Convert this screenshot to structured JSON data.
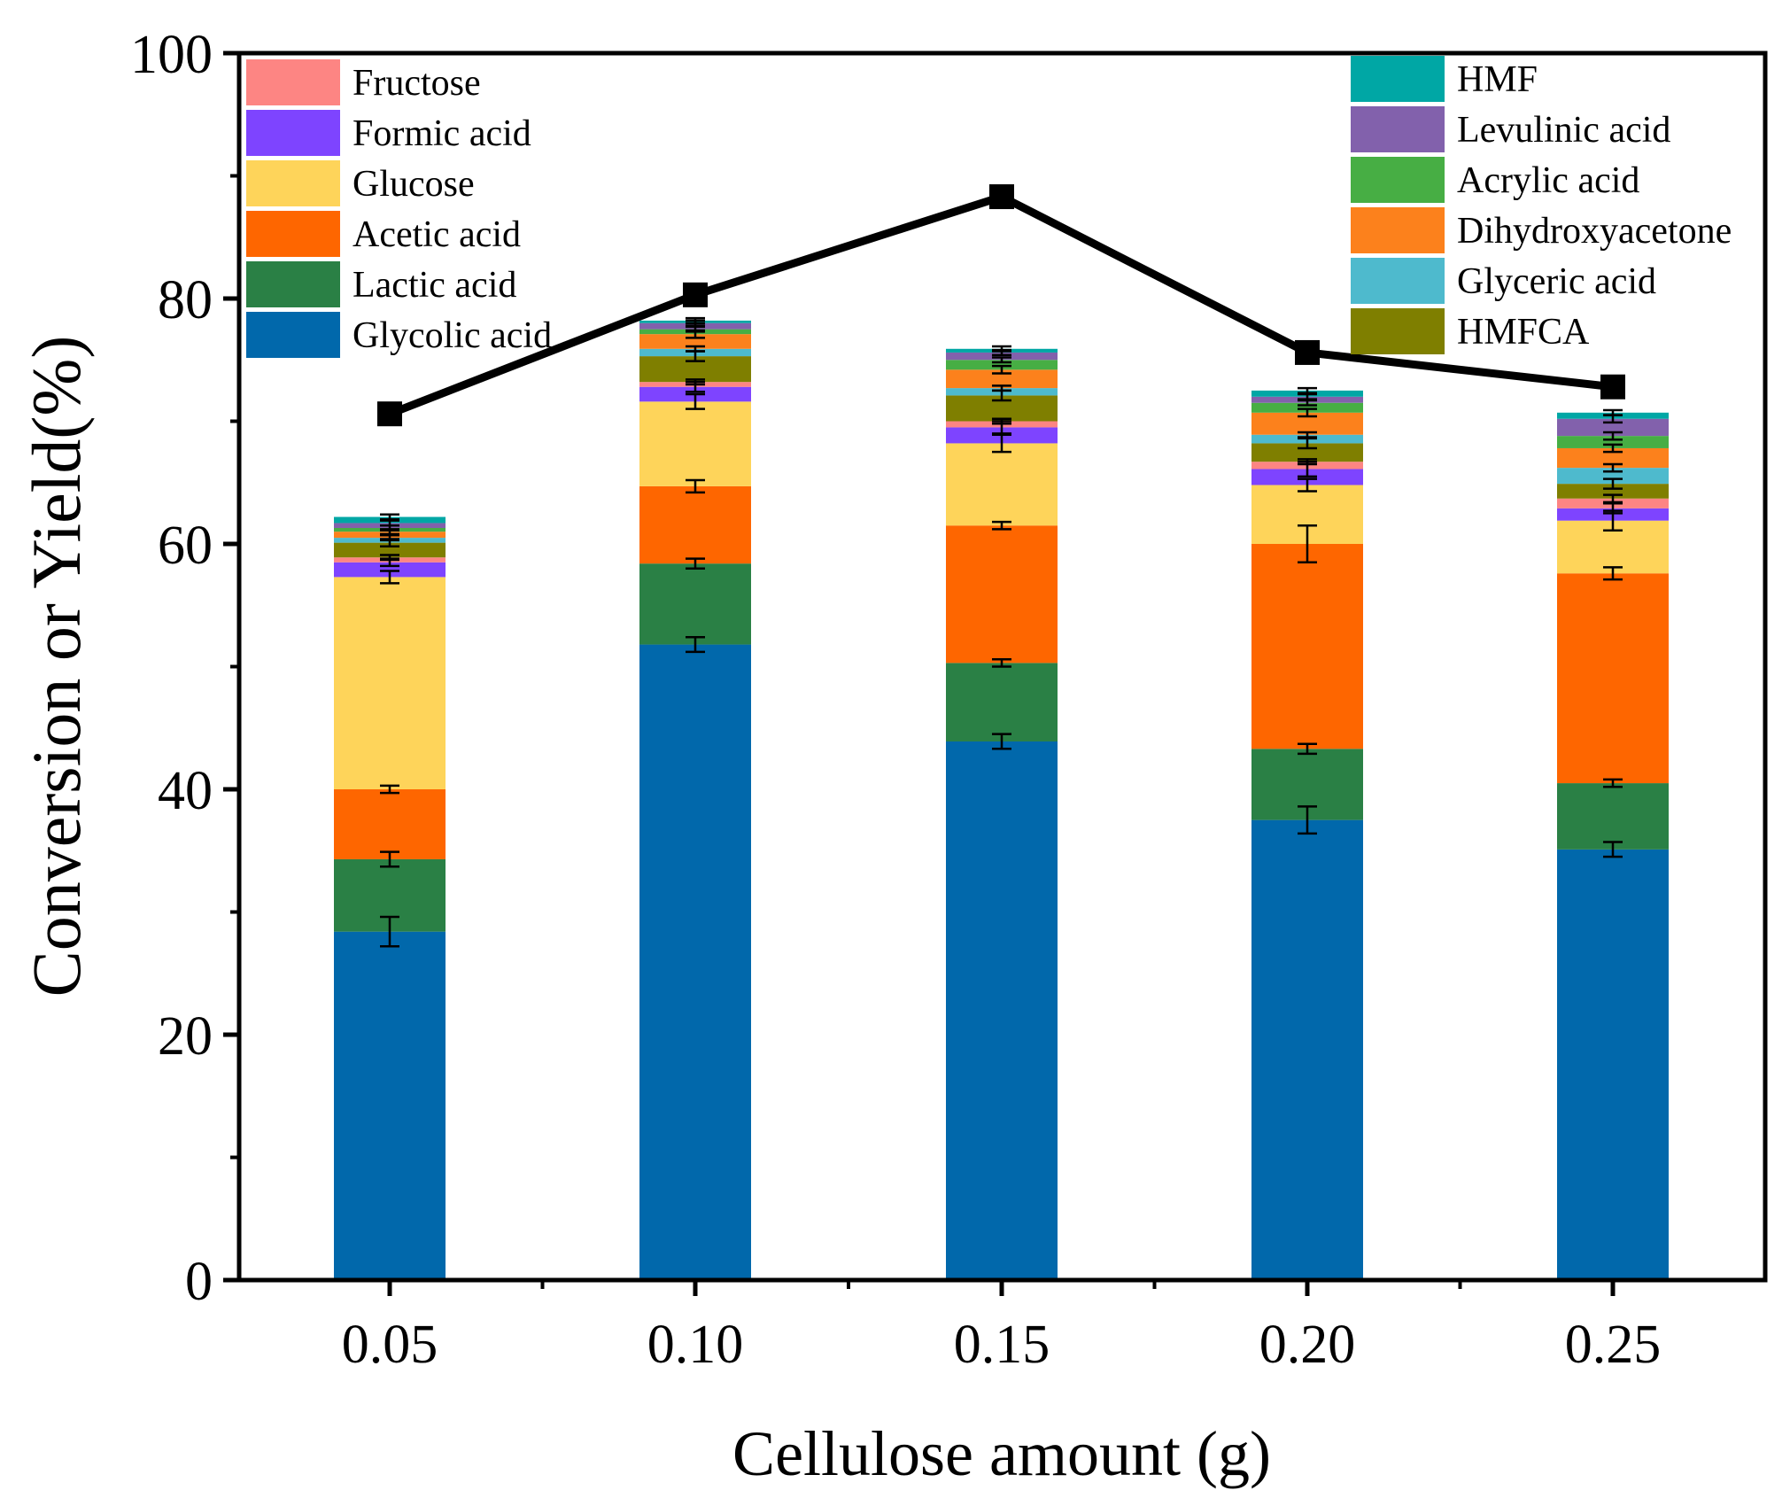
{
  "chart_data": {
    "type": "bar",
    "stacked": true,
    "title": "",
    "xlabel": "Cellulose amount (g)",
    "ylabel": "Conversion or Yield(%)",
    "ylim": [
      0,
      100
    ],
    "yticks": [
      "0",
      "20",
      "40",
      "60",
      "80",
      "100"
    ],
    "categories": [
      "0.05",
      "0.10",
      "0.15",
      "0.20",
      "0.25"
    ],
    "series": [
      {
        "name": "Glycolic acid",
        "color": "#0168ab",
        "values": [
          28.4,
          51.8,
          43.9,
          37.5,
          35.1
        ],
        "errors": [
          1.2,
          0.6,
          0.6,
          1.1,
          0.6
        ]
      },
      {
        "name": "Lactic acid",
        "color": "#2a8045",
        "values": [
          5.9,
          6.6,
          6.4,
          5.8,
          5.4
        ],
        "errors": [
          0.6,
          0.4,
          0.3,
          0.4,
          0.3
        ]
      },
      {
        "name": "Acetic acid",
        "color": "#fe6600",
        "values": [
          5.7,
          6.3,
          11.2,
          16.7,
          17.1
        ],
        "errors": [
          0.3,
          0.5,
          0.3,
          1.5,
          0.5
        ]
      },
      {
        "name": "Glucose",
        "color": "#fed45a",
        "values": [
          17.3,
          6.9,
          6.7,
          4.8,
          4.3
        ],
        "errors": [
          0.5,
          0.6,
          0.7,
          0.5,
          0.8
        ]
      },
      {
        "name": "Formic acid",
        "color": "#7e44ff",
        "values": [
          1.2,
          1.2,
          1.3,
          1.3,
          1.0
        ],
        "errors": [
          0.3,
          0.4,
          0.5,
          0.6,
          0.4
        ]
      },
      {
        "name": "Fructose",
        "color": "#fd8583",
        "values": [
          0.4,
          0.4,
          0.5,
          0.6,
          0.8
        ],
        "errors": [
          0.2,
          0.2,
          0.2,
          0.2,
          0.3
        ]
      },
      {
        "name": "HMFCA",
        "color": "#7f7f00",
        "values": [
          1.2,
          2.1,
          2.1,
          1.5,
          1.2
        ],
        "errors": [
          0.3,
          0.4,
          0.4,
          0.4,
          0.4
        ]
      },
      {
        "name": "Glyceric acid",
        "color": "#4ebacd",
        "values": [
          0.4,
          0.6,
          0.6,
          0.7,
          1.3
        ],
        "errors": [
          0.2,
          0.2,
          0.2,
          0.2,
          0.3
        ]
      },
      {
        "name": "Dihydroxyacetone",
        "color": "#fc811c",
        "values": [
          0.5,
          1.2,
          1.5,
          1.8,
          1.6
        ],
        "errors": [
          0.2,
          0.3,
          0.3,
          0.3,
          0.3
        ]
      },
      {
        "name": "Acrylic acid",
        "color": "#47ae44",
        "values": [
          0.3,
          0.4,
          0.8,
          0.8,
          1.0
        ],
        "errors": [
          0.2,
          0.2,
          0.2,
          0.2,
          0.3
        ]
      },
      {
        "name": "Levulinic acid",
        "color": "#8261ac",
        "values": [
          0.4,
          0.5,
          0.6,
          0.5,
          1.4
        ],
        "errors": [
          0.2,
          0.2,
          0.2,
          0.2,
          0.3
        ]
      },
      {
        "name": "HMF",
        "color": "#00a7a5",
        "values": [
          0.5,
          0.2,
          0.3,
          0.5,
          0.5
        ],
        "errors": [
          0.2,
          0.2,
          0.2,
          0.2,
          0.2
        ]
      }
    ],
    "line": {
      "name": "Conversion",
      "color": "#000000",
      "values": [
        70.6,
        80.3,
        88.3,
        75.6,
        72.8
      ]
    },
    "legend_left": [
      "Fructose",
      "Formic acid",
      "Glucose",
      "Acetic acid",
      "Lactic acid",
      "Glycolic acid"
    ],
    "legend_right": [
      "HMF",
      "Levulinic acid",
      "Acrylic acid",
      "Dihydroxyacetone",
      "Glyceric acid",
      "HMFCA"
    ],
    "grid": false,
    "legend_position": "top-left and top-right"
  }
}
